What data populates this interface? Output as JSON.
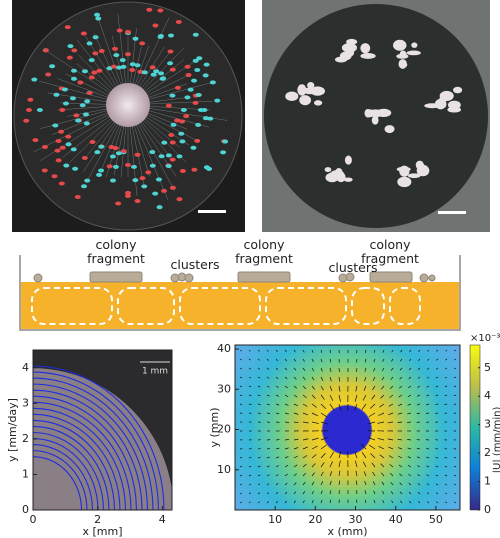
{
  "diagram": {
    "labels": [
      "colony fragment",
      "clusters",
      "colony fragment",
      "clusters",
      "colony fragment"
    ]
  },
  "left_plot": {
    "xlabel": "x [mm]",
    "ylabel": "y [mm/day]",
    "xlim": [
      0,
      4.3
    ],
    "ylim": [
      0,
      4.5
    ],
    "xticks": [
      0,
      2,
      4
    ],
    "yticks": [
      0,
      1,
      2,
      3,
      4
    ],
    "scale_label": "1 mm"
  },
  "right_plot": {
    "xlabel": "x (mm)",
    "ylabel": "y (mm)",
    "xlim": [
      0,
      56
    ],
    "ylim": [
      0,
      41
    ],
    "xticks": [
      10,
      20,
      30,
      40,
      50
    ],
    "yticks": [
      10,
      20,
      30,
      40
    ],
    "colorbar": {
      "label": "|U| (mm/min)",
      "exponent": "×10⁻³",
      "lim": [
        0,
        5.8
      ],
      "ticks": [
        0,
        1,
        2,
        3,
        4,
        5
      ]
    }
  }
}
